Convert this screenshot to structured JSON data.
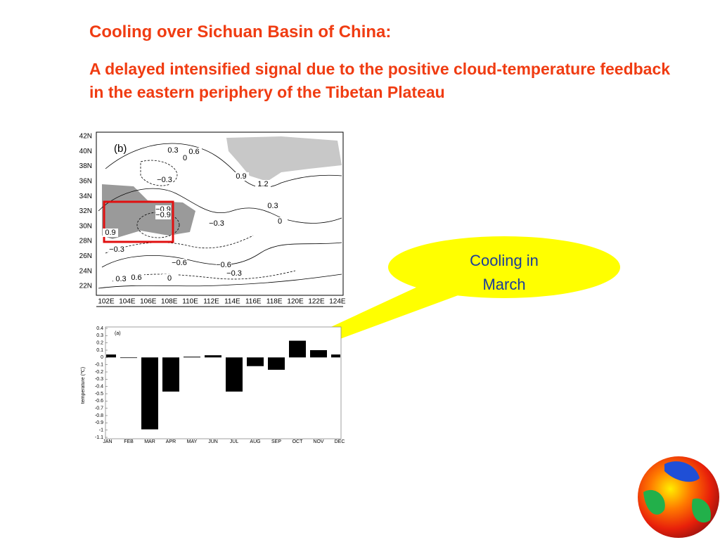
{
  "slide": {
    "title": "Cooling over Sichuan Basin of China:",
    "subtitle": "A delayed intensified signal due to the positive cloud-temperature feedback in the eastern periphery of the Tibetan Plateau",
    "callout": "Cooling in March"
  },
  "map": {
    "panel_label": "(b)",
    "lat_labels": [
      "42N",
      "40N",
      "38N",
      "36N",
      "34N",
      "32N",
      "30N",
      "28N",
      "26N",
      "24N",
      "22N"
    ],
    "lon_labels": [
      "102E",
      "104E",
      "106E",
      "108E",
      "110E",
      "112E",
      "114E",
      "116E",
      "118E",
      "120E",
      "122E",
      "124E"
    ],
    "contour_labels": [
      "0.3",
      "0.6",
      "0",
      "−0.3",
      "0.9",
      "1.2",
      "0.3",
      "0",
      "−0.3",
      "−0.9",
      "−0.9",
      "0.9",
      "−0.3",
      "−0.6",
      "−0.6",
      "−0.3",
      "0.3",
      "0.6",
      "0"
    ]
  },
  "chart_data": {
    "type": "bar",
    "panel_label": "(a)",
    "y_label": "temperature (℃)",
    "categories": [
      "JAN",
      "FEB",
      "MAR",
      "APR",
      "MAY",
      "JUN",
      "JUL",
      "AUG",
      "SEP",
      "OCT",
      "NOV",
      "DEC"
    ],
    "values": [
      0.04,
      0,
      -0.99,
      -0.47,
      0.01,
      0.03,
      -0.47,
      -0.12,
      -0.17,
      0.23,
      0.1,
      0.04
    ],
    "color": "#000000",
    "ylim": [
      -1.1,
      0.4
    ],
    "yticks": [
      0.4,
      0.3,
      0.2,
      0.1,
      0,
      -0.1,
      -0.2,
      -0.3,
      -0.4,
      -0.5,
      -0.6,
      -0.7,
      -0.8,
      -0.9,
      -1,
      -1.1
    ]
  }
}
